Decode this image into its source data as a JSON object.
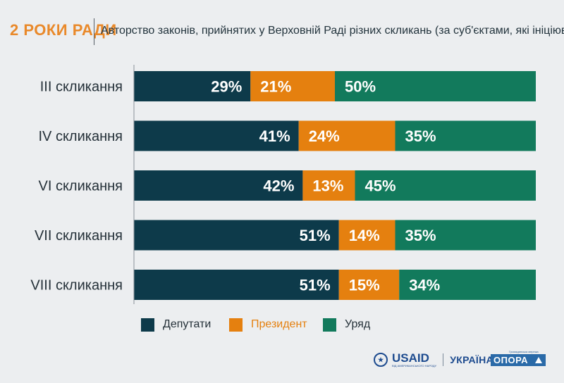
{
  "header": {
    "brand": "2 РОКИ РАДИ",
    "title": "Авторство законів, прийнятих у Верховній Раді різних скликань (за суб'єктами, які ініціювали)"
  },
  "colors": {
    "deputies": "#0d3a4a",
    "president": "#e5800f",
    "government": "#127a5c",
    "brand": "#e9892a",
    "axis": "#8a9299",
    "label": "#243038"
  },
  "chart_data": {
    "type": "bar",
    "orientation": "horizontal",
    "stacked": true,
    "title": "Авторство законів, прийнятих у Верховній Раді різних скликань (за суб'єктами, які ініціювали)",
    "categories": [
      "III скликання",
      "IV скликання",
      "VI скликання",
      "VII скликання",
      "VIII скликання"
    ],
    "series": [
      {
        "name": "Депутати",
        "color": "#0d3a4a",
        "values": [
          29,
          41,
          42,
          51,
          51
        ]
      },
      {
        "name": "Президент",
        "color": "#e5800f",
        "values": [
          21,
          24,
          13,
          14,
          15
        ]
      },
      {
        "name": "Уряд",
        "color": "#127a5c",
        "values": [
          50,
          35,
          45,
          35,
          34
        ]
      }
    ],
    "unit": "%",
    "xlim": [
      0,
      100
    ],
    "legend_position": "bottom",
    "grid": false
  },
  "footer": {
    "usaid": "USAID",
    "usaid_tagline": "ВІД АМЕРИКАНСЬКОГО НАРОДУ",
    "usaid_country": "УКРАЇНА",
    "opora_tagline": "Громадянська мережа",
    "opora": "ОПОРА"
  }
}
